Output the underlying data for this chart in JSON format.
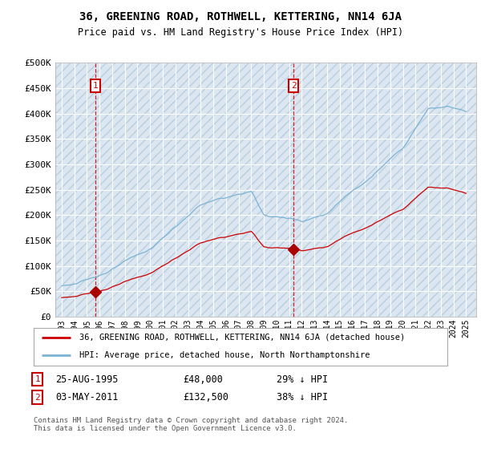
{
  "title": "36, GREENING ROAD, ROTHWELL, KETTERING, NN14 6JA",
  "subtitle": "Price paid vs. HM Land Registry's House Price Index (HPI)",
  "ylim": [
    0,
    500000
  ],
  "yticks": [
    0,
    50000,
    100000,
    150000,
    200000,
    250000,
    300000,
    350000,
    400000,
    450000,
    500000
  ],
  "ytick_labels": [
    "£0",
    "£50K",
    "£100K",
    "£150K",
    "£200K",
    "£250K",
    "£300K",
    "£350K",
    "£400K",
    "£450K",
    "£500K"
  ],
  "background_color": "#ffffff",
  "plot_bg_color": "#dce6f1",
  "hatch_color": "#b8cfe0",
  "grid_color": "#ffffff",
  "sale1_x": 1995.65,
  "sale1_y": 48000,
  "sale2_x": 2011.34,
  "sale2_y": 132500,
  "hpi_line_color": "#7ab3d4",
  "price_line_color": "#cc0000",
  "sale_marker_color": "#aa0000",
  "sale_label_color": "#cc0000",
  "legend_house_label": "36, GREENING ROAD, ROTHWELL, KETTERING, NN14 6JA (detached house)",
  "legend_hpi_label": "HPI: Average price, detached house, North Northamptonshire",
  "sale1_date": "25-AUG-1995",
  "sale1_price": "£48,000",
  "sale1_hpi": "29% ↓ HPI",
  "sale2_date": "03-MAY-2011",
  "sale2_price": "£132,500",
  "sale2_hpi": "38% ↓ HPI",
  "footnote": "Contains HM Land Registry data © Crown copyright and database right 2024.\nThis data is licensed under the Open Government Licence v3.0.",
  "xtick_years": [
    1993,
    1994,
    1995,
    1996,
    1997,
    1998,
    1999,
    2000,
    2001,
    2002,
    2003,
    2004,
    2005,
    2006,
    2007,
    2008,
    2009,
    2010,
    2011,
    2012,
    2013,
    2014,
    2015,
    2016,
    2017,
    2018,
    2019,
    2020,
    2021,
    2022,
    2023,
    2024,
    2025
  ]
}
